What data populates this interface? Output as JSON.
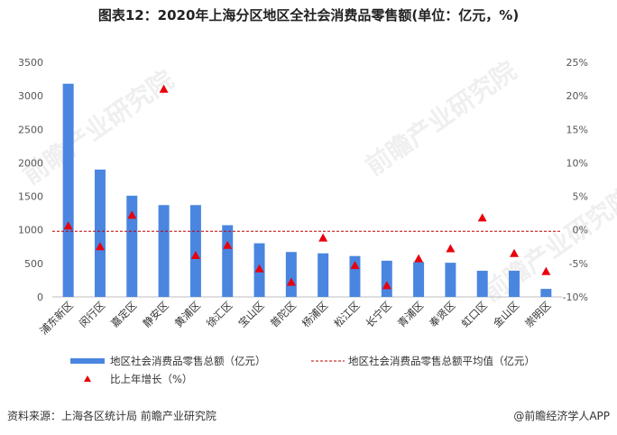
{
  "title": "图表12：2020年上海分区地区全社会消费品零售额(单位：亿元，%)",
  "footer": {
    "source": "资料来源：上海各区统计局 前瞻产业研究院",
    "brand": "@前瞻经济学人APP"
  },
  "watermarks": [
    "前瞻产业研究院",
    "前瞻产业研究院",
    "前瞻产业研究院"
  ],
  "colors": {
    "bar": "#4a86e0",
    "avg_line": "#c00000",
    "marker": "#e8000b"
  },
  "chart_data": {
    "type": "bar",
    "categories": [
      "浦东新区",
      "闵行区",
      "嘉定区",
      "静安区",
      "黄浦区",
      "徐汇区",
      "宝山区",
      "普陀区",
      "杨浦区",
      "松江区",
      "长宁区",
      "青浦区",
      "奉贤区",
      "虹口区",
      "金山区",
      "崇明区"
    ],
    "series": [
      {
        "name": "地区社会消费品零售总额（亿元）",
        "kind": "bar",
        "axis": "left",
        "values": [
          3180,
          1900,
          1510,
          1370,
          1370,
          1070,
          800,
          670,
          650,
          610,
          540,
          520,
          510,
          390,
          390,
          120
        ]
      },
      {
        "name": "比上年增长（%）",
        "kind": "marker",
        "axis": "right",
        "values": [
          0.6,
          -2.5,
          2.2,
          21.0,
          -3.8,
          -2.3,
          -5.8,
          -7.8,
          -1.2,
          -5.3,
          -8.3,
          -4.3,
          -2.8,
          1.8,
          -3.5,
          -6.2
        ]
      },
      {
        "name": "地区社会消费品零售总额平均值（亿元）",
        "kind": "avg-line",
        "axis": "left",
        "value": 980
      }
    ],
    "y_left": {
      "min": 0,
      "max": 3500,
      "step": 500,
      "ticks": [
        "0",
        "500",
        "1000",
        "1500",
        "2000",
        "2500",
        "3000",
        "3500"
      ]
    },
    "y_right": {
      "min": -10,
      "max": 25,
      "step": 5,
      "ticks": [
        "-10%",
        "-5%",
        "0%",
        "5%",
        "10%",
        "15%",
        "20%",
        "25%"
      ]
    },
    "legend_position": "bottom",
    "grid": false
  }
}
